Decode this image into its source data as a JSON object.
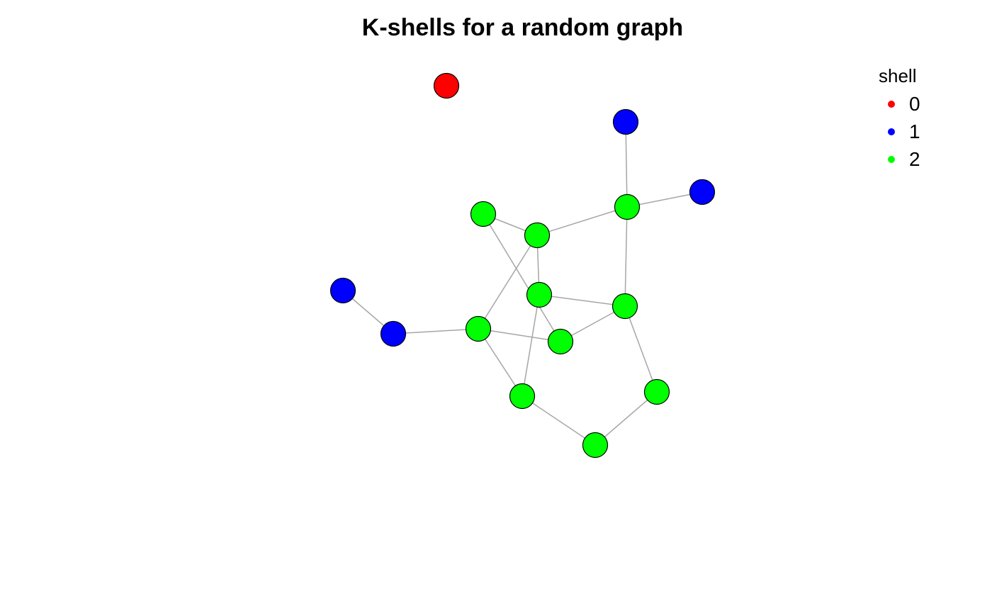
{
  "title": "K-shells for a random graph",
  "legend": {
    "title": "shell",
    "entries": [
      {
        "label": "0",
        "color": "#ff0000"
      },
      {
        "label": "1",
        "color": "#0000ff"
      },
      {
        "label": "2",
        "color": "#00ff00"
      }
    ]
  },
  "graph": {
    "nodes": [
      {
        "id": "n1",
        "shell": 0
      },
      {
        "id": "n2",
        "shell": 1
      },
      {
        "id": "n3",
        "shell": 1
      },
      {
        "id": "n4",
        "shell": 2
      },
      {
        "id": "n5",
        "shell": 2
      },
      {
        "id": "n6",
        "shell": 2
      },
      {
        "id": "n7",
        "shell": 1
      },
      {
        "id": "n8",
        "shell": 2
      },
      {
        "id": "n9",
        "shell": 2
      },
      {
        "id": "n10",
        "shell": 1
      },
      {
        "id": "n11",
        "shell": 2
      },
      {
        "id": "n12",
        "shell": 2
      },
      {
        "id": "n13",
        "shell": 2
      },
      {
        "id": "n14",
        "shell": 2
      },
      {
        "id": "n15",
        "shell": 2
      }
    ],
    "edges": [
      [
        "n2",
        "n4"
      ],
      [
        "n4",
        "n3"
      ],
      [
        "n4",
        "n6"
      ],
      [
        "n4",
        "n9"
      ],
      [
        "n5",
        "n6"
      ],
      [
        "n5",
        "n12"
      ],
      [
        "n6",
        "n8"
      ],
      [
        "n6",
        "n11"
      ],
      [
        "n8",
        "n9"
      ],
      [
        "n8",
        "n13"
      ],
      [
        "n9",
        "n12"
      ],
      [
        "n9",
        "n14"
      ],
      [
        "n7",
        "n10"
      ],
      [
        "n10",
        "n11"
      ],
      [
        "n11",
        "n12"
      ],
      [
        "n11",
        "n13"
      ],
      [
        "n13",
        "n15"
      ],
      [
        "n15",
        "n14"
      ]
    ]
  }
}
